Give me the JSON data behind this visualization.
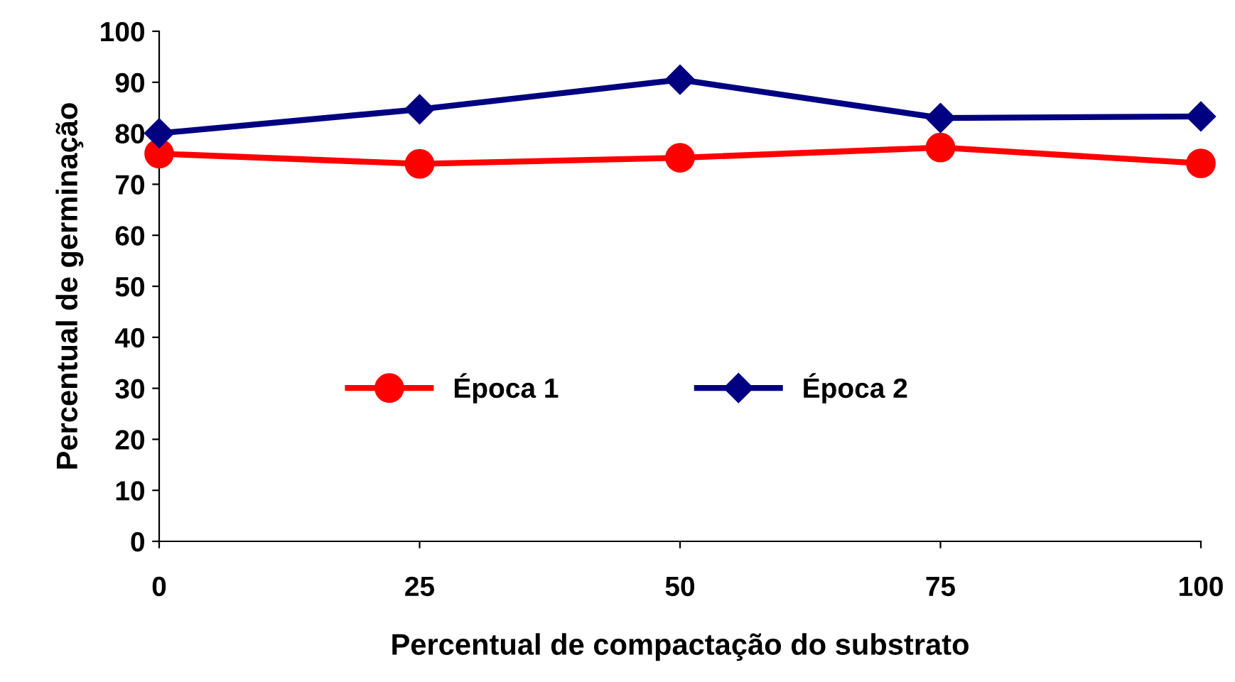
{
  "chart_data": {
    "type": "line",
    "xlabel": "Percentual de compactação do substrato",
    "ylabel": "Percentual de germinação",
    "x": [
      0,
      25,
      50,
      75,
      100
    ],
    "series": [
      {
        "name": "Época 1",
        "color": "#ff0000",
        "marker": "circle",
        "values": [
          76,
          74,
          75.2,
          77.2,
          74.1
        ]
      },
      {
        "name": "Época 2",
        "color": "#000080",
        "marker": "diamond",
        "values": [
          80,
          84.7,
          90.5,
          83,
          83.3
        ]
      }
    ],
    "xlim": [
      0,
      100
    ],
    "xticks": [
      0,
      25,
      50,
      75,
      100
    ],
    "ylim": [
      0,
      100
    ],
    "yticks": [
      0,
      10,
      20,
      30,
      40,
      50,
      60,
      70,
      80,
      90,
      100
    ],
    "grid": false,
    "legend": "center"
  }
}
